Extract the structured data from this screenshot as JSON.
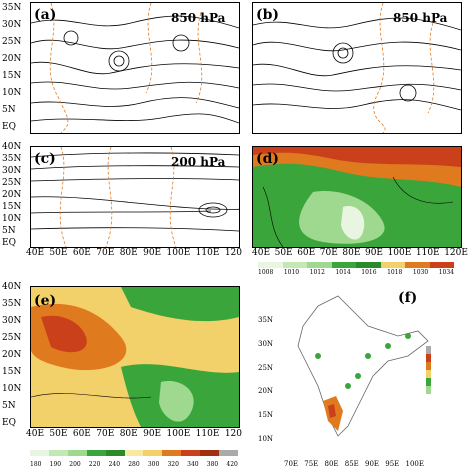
{
  "panels": {
    "a": {
      "label": "(a)",
      "level": "850 hPa"
    },
    "b": {
      "label": "(b)",
      "level": "850 hPa"
    },
    "c": {
      "label": "(c)",
      "level": "200 hPa"
    },
    "d": {
      "label": "(d)"
    },
    "e": {
      "label": "(e)"
    },
    "f": {
      "label": "(f)"
    }
  },
  "lat_ticks_top": [
    "40N",
    "35N",
    "30N",
    "25N",
    "20N",
    "15N",
    "10N",
    "5N",
    "EQ"
  ],
  "lat_ticks_a": [
    "35N",
    "30N",
    "25N",
    "20N",
    "15N",
    "10N",
    "5N",
    "EQ"
  ],
  "lon_ticks": [
    "40E",
    "50E",
    "60E",
    "70E",
    "80E",
    "90E",
    "100E",
    "110E",
    "120"
  ],
  "lon_ticks_d": [
    "40E",
    "50E",
    "60E",
    "70E",
    "80E",
    "90E",
    "100E",
    "110E",
    "120E"
  ],
  "lon_ticks_e": [
    "40E",
    "50E",
    "60E",
    "70E",
    "80E",
    "90E",
    "100E",
    "110E",
    "120"
  ],
  "f_lat_ticks": [
    "35N",
    "30N",
    "25N",
    "20N",
    "15N",
    "10N"
  ],
  "f_lon_ticks": [
    "70E",
    "75E",
    "80E",
    "85E",
    "90E",
    "95E",
    "100E"
  ],
  "colorbar_d": [
    "1008",
    "1010",
    "1012",
    "1014",
    "1016",
    "1018",
    "1030",
    "1034"
  ],
  "colorbar_e": [
    "180",
    "190",
    "200",
    "220",
    "240",
    "280",
    "300",
    "320",
    "340",
    "380",
    "420"
  ],
  "colors": {
    "orange": "#e07a1f",
    "dark_orange": "#c9401a",
    "green": "#3aa53a",
    "light_green": "#9fd88f",
    "pale": "#e8f5e0"
  }
}
